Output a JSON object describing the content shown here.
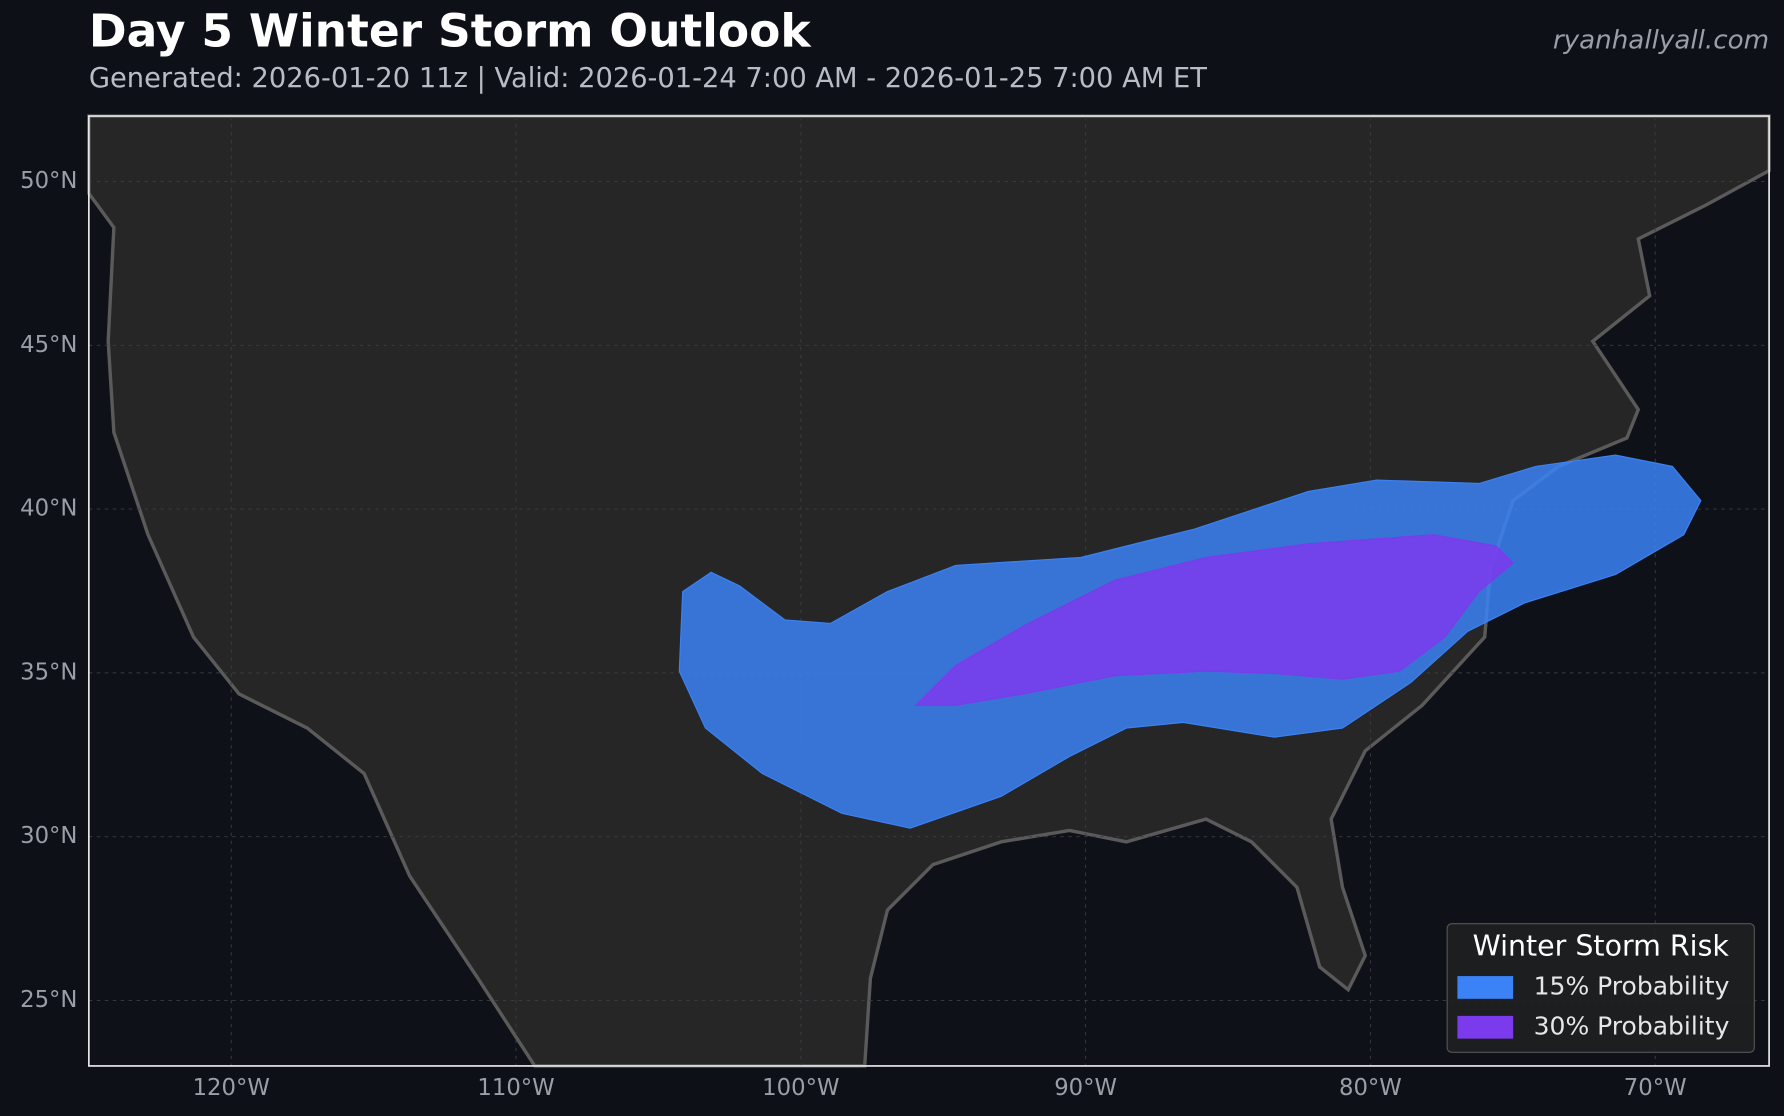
{
  "chart_data": {
    "type": "map",
    "title": "Day 5 Winter Storm Outlook",
    "subtitle": "Generated: 2026-01-20 11z | Valid: 2026-01-24 7:00 AM - 2026-01-25 7:00 AM ET",
    "watermark": "ryanhallyall.com",
    "xlim": [
      -125,
      -66
    ],
    "ylim": [
      23,
      52
    ],
    "xticks": [
      {
        "value": -120,
        "label": "120°W"
      },
      {
        "value": -110,
        "label": "110°W"
      },
      {
        "value": -100,
        "label": "100°W"
      },
      {
        "value": -90,
        "label": "90°W"
      },
      {
        "value": -80,
        "label": "80°W"
      },
      {
        "value": -70,
        "label": "70°W"
      }
    ],
    "yticks": [
      {
        "value": 25,
        "label": "25°N"
      },
      {
        "value": 30,
        "label": "30°N"
      },
      {
        "value": 35,
        "label": "35°N"
      },
      {
        "value": 40,
        "label": "40°N"
      },
      {
        "value": 45,
        "label": "45°N"
      },
      {
        "value": 50,
        "label": "50°N"
      }
    ],
    "grid": true,
    "legend": {
      "title": "Winter Storm Risk",
      "corner": "lower right"
    },
    "series": [
      {
        "name": "15% Probability",
        "color": "#3b82f6"
      },
      {
        "name": "30% Probability",
        "color": "#7c3aed"
      }
    ]
  }
}
